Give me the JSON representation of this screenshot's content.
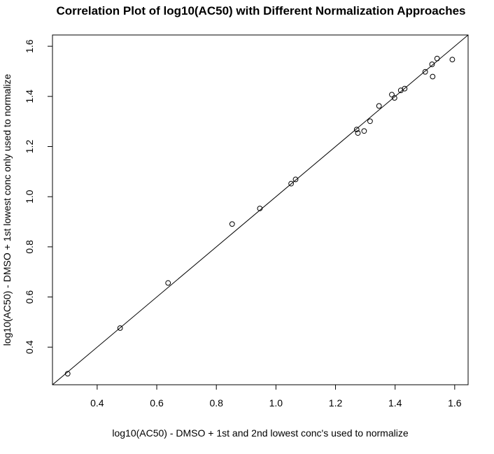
{
  "chart_data": {
    "type": "scatter",
    "title": "Correlation Plot of log10(AC50) with Different Normalization Approaches",
    "xlabel": "log10(AC50) - DMSO + 1st and 2nd lowest conc's used to normalize",
    "ylabel": "log10(AC50) - DMSO + 1st lowest conc only used to normalize",
    "xlim": [
      0.25,
      1.645
    ],
    "ylim": [
      0.25,
      1.645
    ],
    "x_ticks": [
      0.4,
      0.6,
      0.8,
      1.0,
      1.2,
      1.4,
      1.6
    ],
    "y_ticks": [
      0.4,
      0.6,
      0.8,
      1.0,
      1.2,
      1.4,
      1.6
    ],
    "x_tick_labels": [
      "0.4",
      "0.6",
      "0.8",
      "1.0",
      "1.2",
      "1.4",
      "1.6"
    ],
    "y_tick_labels": [
      "0.4",
      "0.6",
      "0.8",
      "1.0",
      "1.2",
      "1.4",
      "1.6"
    ],
    "grid": false,
    "reference_line": {
      "intercept": 0,
      "slope": 1
    },
    "points": [
      {
        "x": 0.301,
        "y": 0.294
      },
      {
        "x": 0.477,
        "y": 0.476
      },
      {
        "x": 0.638,
        "y": 0.656
      },
      {
        "x": 0.853,
        "y": 0.891
      },
      {
        "x": 0.946,
        "y": 0.953
      },
      {
        "x": 1.051,
        "y": 1.052
      },
      {
        "x": 1.066,
        "y": 1.069
      },
      {
        "x": 1.271,
        "y": 1.268
      },
      {
        "x": 1.275,
        "y": 1.254
      },
      {
        "x": 1.296,
        "y": 1.262
      },
      {
        "x": 1.316,
        "y": 1.301
      },
      {
        "x": 1.346,
        "y": 1.362
      },
      {
        "x": 1.389,
        "y": 1.407
      },
      {
        "x": 1.398,
        "y": 1.394
      },
      {
        "x": 1.419,
        "y": 1.424
      },
      {
        "x": 1.432,
        "y": 1.431
      },
      {
        "x": 1.501,
        "y": 1.498
      },
      {
        "x": 1.524,
        "y": 1.528
      },
      {
        "x": 1.526,
        "y": 1.479
      },
      {
        "x": 1.541,
        "y": 1.551
      },
      {
        "x": 1.592,
        "y": 1.547
      }
    ]
  }
}
